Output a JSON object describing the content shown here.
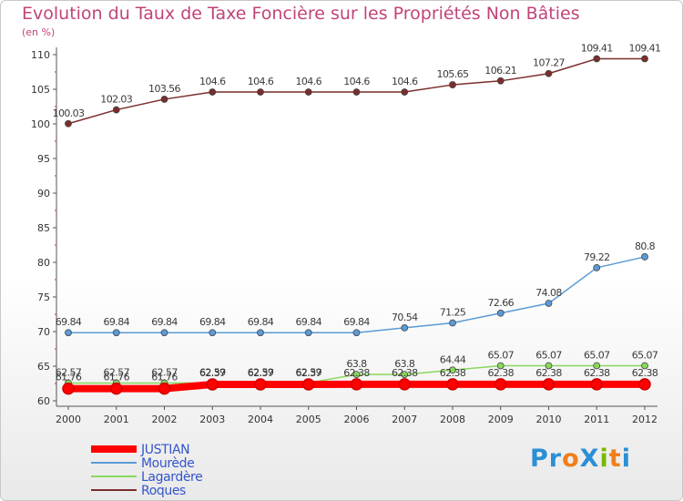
{
  "title": "Evolution du Taux de Taxe Foncière sur les Propriétés Non Bâties",
  "unit": "(en %)",
  "logo": "ProXiti",
  "chart_data": {
    "type": "line",
    "categories": [
      "2000",
      "2001",
      "2002",
      "2003",
      "2004",
      "2005",
      "2006",
      "2007",
      "2008",
      "2009",
      "2010",
      "2011",
      "2012"
    ],
    "ylim": [
      60,
      110
    ],
    "yticks": [
      60,
      65,
      70,
      75,
      80,
      85,
      90,
      95,
      100,
      105,
      110
    ],
    "grid": false,
    "legend_position": "bottom-left",
    "series": [
      {
        "name": "JUSTIAN",
        "color": "#ff0000",
        "values": [
          61.76,
          61.76,
          61.76,
          62.37,
          62.37,
          62.37,
          62.38,
          62.38,
          62.38,
          62.38,
          62.38,
          62.38,
          62.38
        ],
        "labels": [
          "61.76",
          "61.76",
          "61.76",
          "62.37",
          "62.37",
          "62.37",
          "62.38",
          "62.38",
          "62.38",
          "62.38",
          "62.38",
          "62.38",
          "62.38"
        ]
      },
      {
        "name": "Mourède",
        "color": "#5b9bd5",
        "values": [
          69.84,
          69.84,
          69.84,
          69.84,
          69.84,
          69.84,
          69.84,
          70.54,
          71.25,
          72.66,
          74.08,
          79.22,
          80.8
        ],
        "labels": [
          "69.84",
          "69.84",
          "69.84",
          "69.84",
          "69.84",
          "69.84",
          "69.84",
          "70.54",
          "71.25",
          "72.66",
          "74.08",
          "79.22",
          "80.8"
        ]
      },
      {
        "name": "Lagardère",
        "color": "#88d85c",
        "values": [
          62.57,
          62.57,
          62.57,
          62.59,
          62.59,
          62.59,
          63.8,
          63.8,
          64.44,
          65.07,
          65.07,
          65.07,
          65.07
        ],
        "labels": [
          "62.57",
          "62.57",
          "62.57",
          "62.59",
          "62.59",
          "62.59",
          "63.8",
          "63.8",
          "64.44",
          "65.07",
          "65.07",
          "65.07",
          "65.07"
        ]
      },
      {
        "name": "Roques",
        "color": "#7b2d2d",
        "values": [
          100.03,
          102.03,
          103.56,
          104.6,
          104.6,
          104.6,
          104.6,
          104.6,
          105.65,
          106.21,
          107.27,
          109.41,
          109.41
        ],
        "labels": [
          "100.03",
          "102.03",
          "103.56",
          "104.6",
          "104.6",
          "104.6",
          "104.6",
          "104.6",
          "105.65",
          "106.21",
          "107.27",
          "109.41",
          "109.41"
        ]
      }
    ]
  }
}
